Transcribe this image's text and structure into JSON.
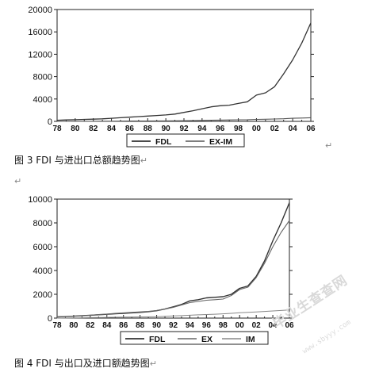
{
  "chart_data": [
    {
      "type": "line",
      "caption": "图 3 FDI 与进出口总额趋势图",
      "x": [
        "78",
        "79",
        "80",
        "81",
        "82",
        "83",
        "84",
        "85",
        "86",
        "87",
        "88",
        "89",
        "90",
        "91",
        "92",
        "93",
        "94",
        "95",
        "96",
        "97",
        "98",
        "99",
        "00",
        "01",
        "02",
        "03",
        "04",
        "05",
        "06"
      ],
      "xticks": [
        "78",
        "80",
        "82",
        "84",
        "86",
        "88",
        "90",
        "92",
        "94",
        "96",
        "98",
        "00",
        "02",
        "04",
        "06"
      ],
      "yticks": [
        "0",
        "4000",
        "8000",
        "12000",
        "16000",
        "20000"
      ],
      "ylim": [
        0,
        20000
      ],
      "grid": false,
      "legend_position": "bottom-center",
      "series": [
        {
          "name": "FDL",
          "values": [
            200,
            250,
            300,
            350,
            400,
            450,
            550,
            650,
            750,
            850,
            950,
            1050,
            1150,
            1300,
            1600,
            1900,
            2250,
            2600,
            2800,
            2900,
            3200,
            3500,
            4700,
            5100,
            6200,
            8500,
            11000,
            14000,
            17600
          ]
        },
        {
          "name": "EX-IM",
          "values": [
            0,
            5,
            10,
            15,
            20,
            25,
            30,
            40,
            50,
            60,
            70,
            80,
            90,
            100,
            120,
            140,
            170,
            200,
            230,
            260,
            280,
            300,
            350,
            380,
            420,
            470,
            550,
            600,
            650
          ]
        }
      ]
    },
    {
      "type": "line",
      "caption": "图 4 FDI 与出口及进口额趋势图",
      "x": [
        "78",
        "79",
        "80",
        "81",
        "82",
        "83",
        "84",
        "85",
        "86",
        "87",
        "88",
        "89",
        "90",
        "91",
        "92",
        "93",
        "94",
        "95",
        "96",
        "97",
        "98",
        "99",
        "00",
        "01",
        "02",
        "03",
        "04",
        "05",
        "06"
      ],
      "xticks": [
        "78",
        "80",
        "82",
        "84",
        "86",
        "88",
        "90",
        "92",
        "94",
        "96",
        "98",
        "00",
        "02",
        "04",
        "06"
      ],
      "yticks": [
        "0",
        "2000",
        "4000",
        "6000",
        "8000",
        "10000"
      ],
      "ylim": [
        0,
        10000
      ],
      "grid": false,
      "legend_position": "bottom-center",
      "series": [
        {
          "name": "FDL",
          "values": [
            100,
            130,
            160,
            200,
            240,
            280,
            320,
            360,
            400,
            440,
            480,
            540,
            620,
            760,
            950,
            1150,
            1450,
            1550,
            1700,
            1750,
            1800,
            2000,
            2500,
            2700,
            3500,
            4800,
            6500,
            8000,
            9700
          ]
        },
        {
          "name": "EX",
          "values": [
            100,
            130,
            160,
            200,
            240,
            290,
            340,
            390,
            440,
            480,
            520,
            560,
            640,
            760,
            900,
            1100,
            1300,
            1400,
            1500,
            1550,
            1600,
            1900,
            2400,
            2600,
            3400,
            4600,
            6000,
            7200,
            8200
          ]
        },
        {
          "name": "IM",
          "values": [
            0,
            10,
            20,
            30,
            40,
            50,
            60,
            70,
            80,
            90,
            100,
            110,
            120,
            150,
            180,
            210,
            240,
            270,
            300,
            330,
            360,
            400,
            450,
            480,
            520,
            560,
            600,
            640,
            680
          ]
        }
      ]
    }
  ]
}
